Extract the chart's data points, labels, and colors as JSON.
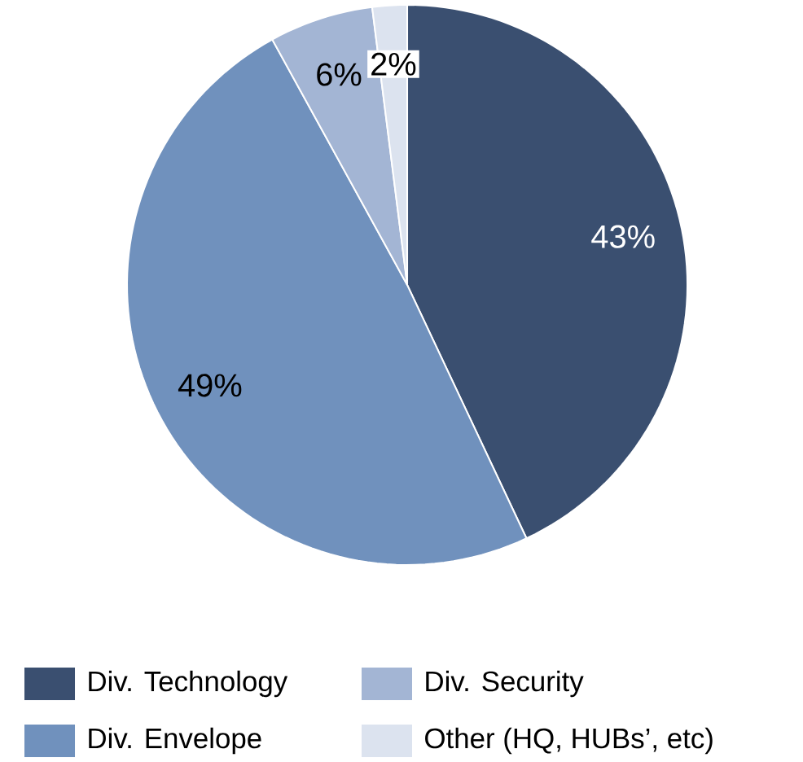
{
  "chart_data": {
    "type": "pie",
    "categories": [
      "Div. Technology",
      "Div. Envelope",
      "Div. Security",
      "Other (HQ, HUBs’, etc)"
    ],
    "values": [
      43,
      49,
      6,
      2
    ],
    "value_labels": [
      "43%",
      "49%",
      "6%",
      "2%"
    ],
    "colors": [
      "#3a4f70",
      "#7091bd",
      "#a3b5d4",
      "#dce3ef"
    ],
    "legend": "bottom"
  }
}
